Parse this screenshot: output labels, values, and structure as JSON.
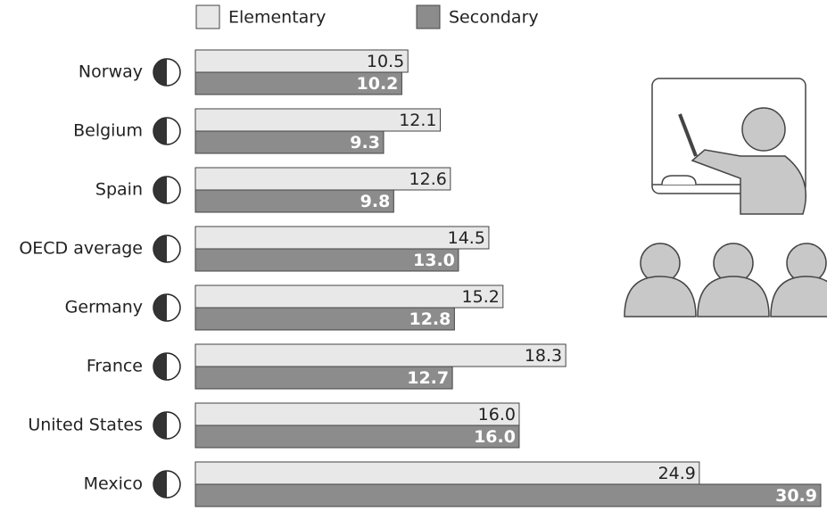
{
  "chart_data": {
    "type": "hbar",
    "categories": [
      "Norway",
      "Belgium",
      "Spain",
      "OECD average",
      "Germany",
      "France",
      "United States",
      "Mexico"
    ],
    "series": [
      {
        "name": "Elementary",
        "color": "#e8e8e8",
        "values": [
          10.5,
          12.1,
          12.6,
          14.5,
          15.2,
          18.3,
          16.0,
          24.9
        ],
        "value_labels": [
          "10.5",
          "12.1",
          "12.6",
          "14.5",
          "15.2",
          "18.3",
          "16.0",
          "24.9"
        ]
      },
      {
        "name": "Secondary",
        "color": "#8c8c8c",
        "values": [
          10.2,
          9.3,
          9.8,
          13.0,
          12.8,
          12.7,
          16.0,
          30.9
        ],
        "value_labels": [
          "10.2",
          "9.3",
          "9.8",
          "13.0",
          "12.8",
          "12.7",
          "16.0",
          "30.9"
        ]
      }
    ]
  }
}
